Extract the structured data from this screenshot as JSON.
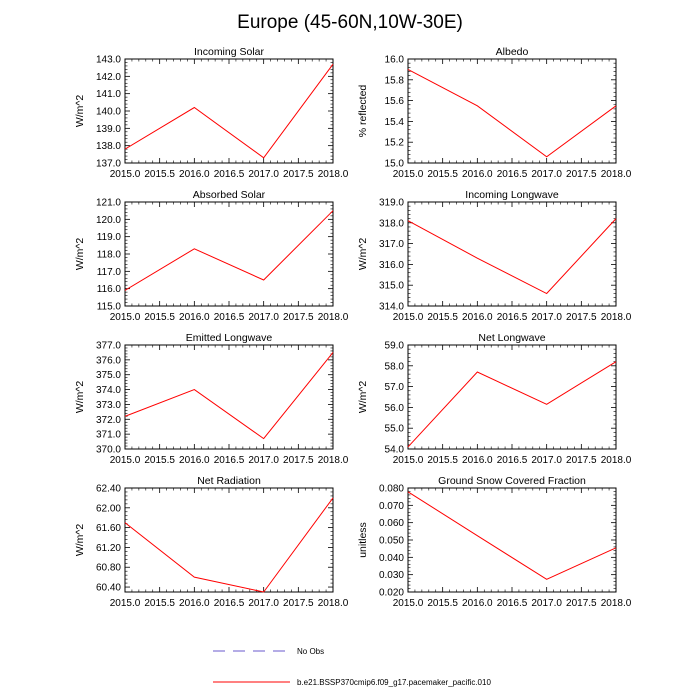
{
  "figure": {
    "title": "Europe (45-60N,10W-30E)",
    "line_color": "#ff0000",
    "obs_color": "#6a5acd"
  },
  "legend": {
    "obs_label": "No Obs",
    "model_label": "b.e21.BSSP370cmip6.f09_g17.pacemaker_pacific.010"
  },
  "chart_data": [
    {
      "type": "line",
      "title": "Incoming Solar",
      "xlabel": "",
      "ylabel": "W/m^2",
      "x": [
        2015.0,
        2016.0,
        2017.0,
        2018.0
      ],
      "series": [
        {
          "name": "b.e21.BSSP370cmip6.f09_g17.pacemaker_pacific.010",
          "values": [
            137.8,
            140.2,
            137.3,
            142.7
          ]
        }
      ],
      "xlim": [
        2015.0,
        2018.0
      ],
      "ylim": [
        137.0,
        143.0
      ],
      "xticks": [
        "2015.0",
        "2015.5",
        "2016.0",
        "2016.5",
        "2017.0",
        "2017.5",
        "2018.0"
      ],
      "yticks": [
        "137.0",
        "138.0",
        "139.0",
        "140.0",
        "141.0",
        "142.0",
        "143.0"
      ]
    },
    {
      "type": "line",
      "title": "Albedo",
      "xlabel": "",
      "ylabel": "% reflected",
      "x": [
        2015.0,
        2016.0,
        2017.0,
        2018.0
      ],
      "series": [
        {
          "name": "b.e21.BSSP370cmip6.f09_g17.pacemaker_pacific.010",
          "values": [
            15.9,
            15.55,
            15.06,
            15.55
          ]
        }
      ],
      "xlim": [
        2015.0,
        2018.0
      ],
      "ylim": [
        15.0,
        16.0
      ],
      "xticks": [
        "2015.0",
        "2015.5",
        "2016.0",
        "2016.5",
        "2017.0",
        "2017.5",
        "2018.0"
      ],
      "yticks": [
        "15.0",
        "15.2",
        "15.4",
        "15.6",
        "15.8",
        "16.0"
      ]
    },
    {
      "type": "line",
      "title": "Absorbed Solar",
      "xlabel": "",
      "ylabel": "W/m^2",
      "x": [
        2015.0,
        2016.0,
        2017.0,
        2018.0
      ],
      "series": [
        {
          "name": "b.e21.BSSP370cmip6.f09_g17.pacemaker_pacific.010",
          "values": [
            115.9,
            118.3,
            116.5,
            120.5
          ]
        }
      ],
      "xlim": [
        2015.0,
        2018.0
      ],
      "ylim": [
        115.0,
        121.0
      ],
      "xticks": [
        "2015.0",
        "2015.5",
        "2016.0",
        "2016.5",
        "2017.0",
        "2017.5",
        "2018.0"
      ],
      "yticks": [
        "115.0",
        "116.0",
        "117.0",
        "118.0",
        "119.0",
        "120.0",
        "121.0"
      ]
    },
    {
      "type": "line",
      "title": "Incoming Longwave",
      "xlabel": "",
      "ylabel": "W/m^2",
      "x": [
        2015.0,
        2016.0,
        2017.0,
        2018.0
      ],
      "series": [
        {
          "name": "b.e21.BSSP370cmip6.f09_g17.pacemaker_pacific.010",
          "values": [
            318.1,
            316.3,
            314.6,
            318.2
          ]
        }
      ],
      "xlim": [
        2015.0,
        2018.0
      ],
      "ylim": [
        314.0,
        319.0
      ],
      "xticks": [
        "2015.0",
        "2015.5",
        "2016.0",
        "2016.5",
        "2017.0",
        "2017.5",
        "2018.0"
      ],
      "yticks": [
        "314.0",
        "315.0",
        "316.0",
        "317.0",
        "318.0",
        "319.0"
      ]
    },
    {
      "type": "line",
      "title": "Emitted Longwave",
      "xlabel": "",
      "ylabel": "W/m^2",
      "x": [
        2015.0,
        2016.0,
        2017.0,
        2018.0
      ],
      "series": [
        {
          "name": "b.e21.BSSP370cmip6.f09_g17.pacemaker_pacific.010",
          "values": [
            372.2,
            374.0,
            370.7,
            376.5
          ]
        }
      ],
      "xlim": [
        2015.0,
        2018.0
      ],
      "ylim": [
        370.0,
        377.0
      ],
      "xticks": [
        "2015.0",
        "2015.5",
        "2016.0",
        "2016.5",
        "2017.0",
        "2017.5",
        "2018.0"
      ],
      "yticks": [
        "370.0",
        "371.0",
        "372.0",
        "373.0",
        "374.0",
        "375.0",
        "376.0",
        "377.0"
      ]
    },
    {
      "type": "line",
      "title": "Net Longwave",
      "xlabel": "",
      "ylabel": "W/m^2",
      "x": [
        2015.0,
        2016.0,
        2017.0,
        2018.0
      ],
      "series": [
        {
          "name": "b.e21.BSSP370cmip6.f09_g17.pacemaker_pacific.010",
          "values": [
            54.1,
            57.7,
            56.15,
            58.2
          ]
        }
      ],
      "xlim": [
        2015.0,
        2018.0
      ],
      "ylim": [
        54.0,
        59.0
      ],
      "xticks": [
        "2015.0",
        "2015.5",
        "2016.0",
        "2016.5",
        "2017.0",
        "2017.5",
        "2018.0"
      ],
      "yticks": [
        "54.0",
        "55.0",
        "56.0",
        "57.0",
        "58.0",
        "59.0"
      ]
    },
    {
      "type": "line",
      "title": "Net Radiation",
      "xlabel": "",
      "ylabel": "W/m^2",
      "x": [
        2015.0,
        2016.0,
        2017.0,
        2018.0
      ],
      "series": [
        {
          "name": "b.e21.BSSP370cmip6.f09_g17.pacemaker_pacific.010",
          "values": [
            61.7,
            60.6,
            60.3,
            62.2
          ]
        }
      ],
      "xlim": [
        2015.0,
        2018.0
      ],
      "ylim": [
        60.3,
        62.4
      ],
      "xticks": [
        "2015.0",
        "2015.5",
        "2016.0",
        "2016.5",
        "2017.0",
        "2017.5",
        "2018.0"
      ],
      "yticks": [
        "60.40",
        "60.80",
        "61.20",
        "61.60",
        "62.00",
        "62.40"
      ]
    },
    {
      "type": "line",
      "title": "Ground Snow Covered Fraction",
      "xlabel": "",
      "ylabel": "unitless",
      "x": [
        2015.0,
        2016.0,
        2017.0,
        2018.0
      ],
      "series": [
        {
          "name": "b.e21.BSSP370cmip6.f09_g17.pacemaker_pacific.010",
          "values": [
            0.0778,
            0.0525,
            0.0273,
            0.0455
          ]
        }
      ],
      "xlim": [
        2015.0,
        2018.0
      ],
      "ylim": [
        0.02,
        0.08
      ],
      "xticks": [
        "2015.0",
        "2015.5",
        "2016.0",
        "2016.5",
        "2017.0",
        "2017.5",
        "2018.0"
      ],
      "yticks": [
        "0.020",
        "0.030",
        "0.040",
        "0.050",
        "0.060",
        "0.070",
        "0.080"
      ]
    }
  ]
}
